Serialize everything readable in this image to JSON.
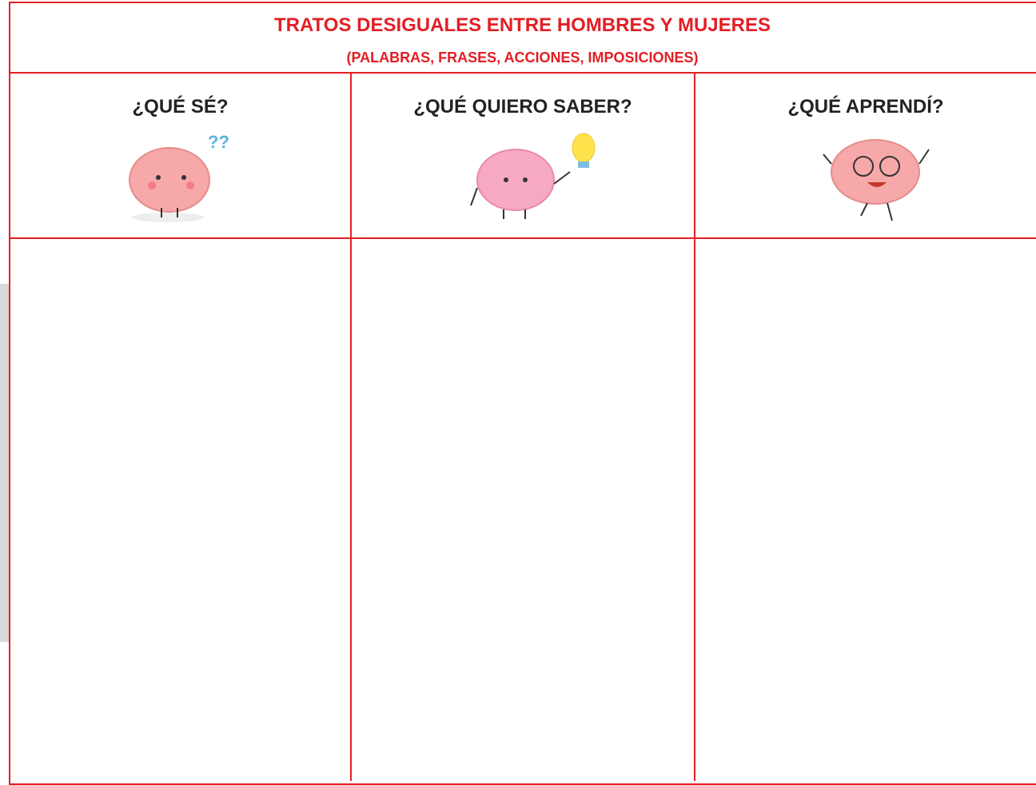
{
  "header": {
    "title": "TRATOS DESIGUALES ENTRE HOMBRES Y MUJERES",
    "subtitle": "(PALABRAS, FRASES, ACCIONES, IMPOSICIONES)"
  },
  "columns": [
    {
      "label": "¿QUÉ SÉ?"
    },
    {
      "label": "¿QUÉ QUIERO SABER?"
    },
    {
      "label": "¿QUÉ APRENDÍ?"
    }
  ]
}
